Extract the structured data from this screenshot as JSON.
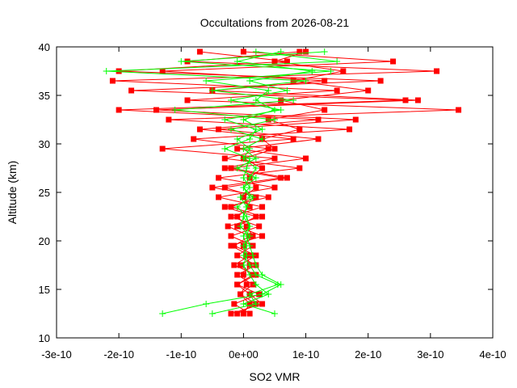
{
  "chart_data": {
    "type": "scatter",
    "title": "Occultations from 2026-08-21",
    "xlabel": "SO2 VMR",
    "ylabel": "Altitude (km)",
    "xlim": [
      -3e-10,
      4e-10
    ],
    "ylim": [
      10,
      40
    ],
    "x_ticks": [
      -3e-10,
      -2e-10,
      -1e-10,
      0,
      1e-10,
      2e-10,
      3e-10,
      4e-10
    ],
    "x_tick_labels": [
      "-3e-10",
      "-2e-10",
      "-1e-10",
      "0e+00",
      "1e-10",
      "2e-10",
      "3e-10",
      "4e-10"
    ],
    "y_ticks": [
      10,
      15,
      20,
      25,
      30,
      35,
      40
    ],
    "y_tick_labels": [
      "10",
      "15",
      "20",
      "25",
      "30",
      "35",
      "40"
    ],
    "grid": false,
    "legend": "none",
    "series": [
      {
        "color": "#ff0000",
        "marker": "square",
        "values": [
          [
            -2e-11,
            12.5
          ],
          [
            3e-11,
            13.5
          ],
          [
            1e-11,
            14.5
          ],
          [
            -1e-11,
            15.5
          ],
          [
            2e-11,
            16.5
          ],
          [
            -1.5e-11,
            17.5
          ],
          [
            1e-11,
            18.5
          ],
          [
            -2e-11,
            19.5
          ],
          [
            3e-11,
            20.5
          ],
          [
            -1e-11,
            21.5
          ],
          [
            2e-11,
            22.5
          ],
          [
            -3e-11,
            23.5
          ],
          [
            4e-11,
            24.5
          ],
          [
            -5e-11,
            25.5
          ],
          [
            6e-11,
            26.5
          ],
          [
            -3e-11,
            27.5
          ],
          [
            5e-11,
            28.5
          ],
          [
            -1.3e-10,
            29.5
          ],
          [
            8e-11,
            30.5
          ],
          [
            -7e-11,
            31.5
          ],
          [
            1.2e-10,
            32.5
          ],
          [
            -2e-10,
            33.5
          ],
          [
            2.6e-10,
            34.5
          ],
          [
            -1.8e-10,
            35.5
          ],
          [
            2.2e-10,
            36.5
          ],
          [
            -2e-10,
            37.5
          ],
          [
            7e-11,
            38.5
          ],
          [
            -7e-11,
            39.5
          ]
        ]
      },
      {
        "color": "#ff0000",
        "marker": "square",
        "values": [
          [
            -1e-11,
            12.5
          ],
          [
            2e-11,
            13.5
          ],
          [
            -5e-12,
            14.5
          ],
          [
            1.5e-11,
            15.5
          ],
          [
            -1e-11,
            16.5
          ],
          [
            2e-11,
            17.5
          ],
          [
            -1e-11,
            18.5
          ],
          [
            1.5e-11,
            19.5
          ],
          [
            -2e-11,
            20.5
          ],
          [
            2.5e-11,
            21.5
          ],
          [
            -2e-11,
            22.5
          ],
          [
            3e-11,
            23.5
          ],
          [
            -4e-11,
            24.5
          ],
          [
            5e-11,
            25.5
          ],
          [
            -4e-11,
            26.5
          ],
          [
            9e-11,
            27.5
          ],
          [
            -3e-11,
            28.5
          ],
          [
            4e-11,
            29.5
          ],
          [
            -8e-11,
            30.5
          ],
          [
            1.7e-10,
            31.5
          ],
          [
            -1.2e-10,
            32.5
          ],
          [
            3.45e-10,
            33.5
          ],
          [
            -9e-11,
            34.5
          ],
          [
            1.5e-10,
            35.5
          ],
          [
            -2.1e-10,
            36.5
          ],
          [
            3.1e-10,
            37.5
          ],
          [
            -9e-11,
            38.5
          ],
          [
            9e-11,
            39.5
          ]
        ]
      },
      {
        "color": "#ff0000",
        "marker": "square",
        "values": [
          [
            1e-11,
            12.5
          ],
          [
            -1.5e-11,
            13.5
          ],
          [
            2.5e-11,
            14.5
          ],
          [
            -1e-11,
            15.5
          ],
          [
            1.5e-11,
            16.5
          ],
          [
            -5e-12,
            17.5
          ],
          [
            2e-11,
            18.5
          ],
          [
            -1.5e-11,
            19.5
          ],
          [
            1e-11,
            20.5
          ],
          [
            -2.5e-11,
            21.5
          ],
          [
            3e-11,
            22.5
          ],
          [
            -2e-11,
            23.5
          ],
          [
            2e-11,
            24.5
          ],
          [
            -3e-11,
            25.5
          ],
          [
            7e-11,
            26.5
          ],
          [
            -2e-11,
            27.5
          ],
          [
            1e-10,
            28.5
          ],
          [
            -1e-11,
            29.5
          ],
          [
            1.2e-10,
            30.5
          ],
          [
            -4e-11,
            31.5
          ],
          [
            1.8e-10,
            32.5
          ],
          [
            -1.4e-10,
            33.5
          ],
          [
            2.8e-10,
            34.5
          ],
          [
            -5e-11,
            35.5
          ],
          [
            1.3e-10,
            36.5
          ],
          [
            -1.3e-10,
            37.5
          ],
          [
            2.4e-10,
            38.5
          ],
          [
            0.0,
            39.5
          ]
        ]
      },
      {
        "color": "#ff0000",
        "marker": "square",
        "values": [
          [
            0.0,
            12.5
          ],
          [
            1e-11,
            13.5
          ],
          [
            -5e-12,
            14.5
          ],
          [
            5e-12,
            15.5
          ],
          [
            0.0,
            16.5
          ],
          [
            1e-11,
            17.5
          ],
          [
            5e-12,
            18.5
          ],
          [
            0.0,
            19.5
          ],
          [
            1.5e-11,
            20.5
          ],
          [
            5e-12,
            21.5
          ],
          [
            -1e-11,
            22.5
          ],
          [
            1e-11,
            23.5
          ],
          [
            0.0,
            24.5
          ],
          [
            2e-11,
            25.5
          ],
          [
            1e-11,
            26.5
          ],
          [
            3e-11,
            27.5
          ],
          [
            0.0,
            28.5
          ],
          [
            5e-11,
            29.5
          ],
          [
            3e-11,
            30.5
          ],
          [
            9e-11,
            31.5
          ],
          [
            4e-11,
            32.5
          ],
          [
            1.3e-10,
            33.5
          ],
          [
            6e-11,
            34.5
          ],
          [
            2e-10,
            35.5
          ],
          [
            8e-11,
            36.5
          ],
          [
            1.6e-10,
            37.5
          ],
          [
            5e-11,
            38.5
          ],
          [
            1e-10,
            39.5
          ]
        ]
      }
    ],
    "green_series": [
      {
        "color": "#00ff00",
        "marker": "plus",
        "values": [
          [
            -1.3e-10,
            12.5
          ],
          [
            -6e-11,
            13.5
          ],
          [
            3e-11,
            14.5
          ],
          [
            6e-11,
            15.5
          ],
          [
            3e-11,
            16.5
          ],
          [
            2e-11,
            17.5
          ],
          [
            1.5e-11,
            18.5
          ],
          [
            1e-11,
            19.5
          ],
          [
            5e-12,
            20.5
          ],
          [
            1e-11,
            21.5
          ],
          [
            5e-12,
            22.5
          ],
          [
            -1e-11,
            23.5
          ],
          [
            1e-11,
            24.5
          ],
          [
            0.0,
            25.5
          ],
          [
            2e-11,
            26.5
          ],
          [
            -1e-11,
            27.5
          ],
          [
            2e-11,
            28.5
          ],
          [
            0.0,
            29.5
          ],
          [
            3e-11,
            30.5
          ],
          [
            -2e-11,
            31.5
          ],
          [
            5e-11,
            32.5
          ],
          [
            -1.1e-10,
            33.5
          ],
          [
            8e-11,
            34.5
          ],
          [
            -5e-11,
            35.5
          ],
          [
            1e-10,
            36.5
          ],
          [
            -2.2e-10,
            37.5
          ],
          [
            1.5e-10,
            38.5
          ],
          [
            2e-11,
            39.5
          ]
        ]
      },
      {
        "color": "#00ff00",
        "marker": "plus",
        "values": [
          [
            5e-11,
            12.5
          ],
          [
            0.0,
            13.5
          ],
          [
            4e-11,
            14.5
          ],
          [
            2e-11,
            15.5
          ],
          [
            1e-11,
            16.5
          ],
          [
            0.0,
            17.5
          ],
          [
            5e-12,
            18.5
          ],
          [
            0.0,
            19.5
          ],
          [
            1e-11,
            20.5
          ],
          [
            -5e-12,
            21.5
          ],
          [
            0.0,
            22.5
          ],
          [
            5e-12,
            23.5
          ],
          [
            -5e-12,
            24.5
          ],
          [
            1e-11,
            25.5
          ],
          [
            0.0,
            26.5
          ],
          [
            5e-12,
            27.5
          ],
          [
            1e-11,
            28.5
          ],
          [
            -3e-11,
            29.5
          ],
          [
            1e-11,
            30.5
          ],
          [
            2e-11,
            31.5
          ],
          [
            -3e-11,
            32.5
          ],
          [
            6e-11,
            33.5
          ],
          [
            -2e-11,
            34.5
          ],
          [
            7e-11,
            35.5
          ],
          [
            1e-11,
            36.5
          ],
          [
            1.1e-10,
            37.5
          ],
          [
            -1e-11,
            38.5
          ],
          [
            6e-11,
            39.5
          ]
        ]
      },
      {
        "color": "#00ff00",
        "marker": "plus",
        "values": [
          [
            -5e-11,
            12.5
          ],
          [
            2e-11,
            13.5
          ],
          [
            1e-11,
            14.5
          ],
          [
            5.5e-11,
            15.5
          ],
          [
            2e-11,
            16.5
          ],
          [
            1e-11,
            17.5
          ],
          [
            0.0,
            18.5
          ],
          [
            5e-12,
            19.5
          ],
          [
            0.0,
            20.5
          ],
          [
            1e-11,
            21.5
          ],
          [
            0.0,
            22.5
          ],
          [
            5e-12,
            23.5
          ],
          [
            1.5e-11,
            24.5
          ],
          [
            0.0,
            25.5
          ],
          [
            1e-11,
            26.5
          ],
          [
            2e-11,
            27.5
          ],
          [
            0.0,
            28.5
          ],
          [
            1e-11,
            29.5
          ],
          [
            -1e-11,
            30.5
          ],
          [
            3e-11,
            31.5
          ],
          [
            0.0,
            32.5
          ],
          [
            5e-11,
            33.5
          ],
          [
            2e-11,
            34.5
          ],
          [
            4e-11,
            35.5
          ],
          [
            -6e-11,
            36.5
          ],
          [
            1.4e-10,
            37.5
          ],
          [
            -1e-10,
            38.5
          ],
          [
            1.3e-10,
            39.5
          ]
        ]
      }
    ]
  }
}
